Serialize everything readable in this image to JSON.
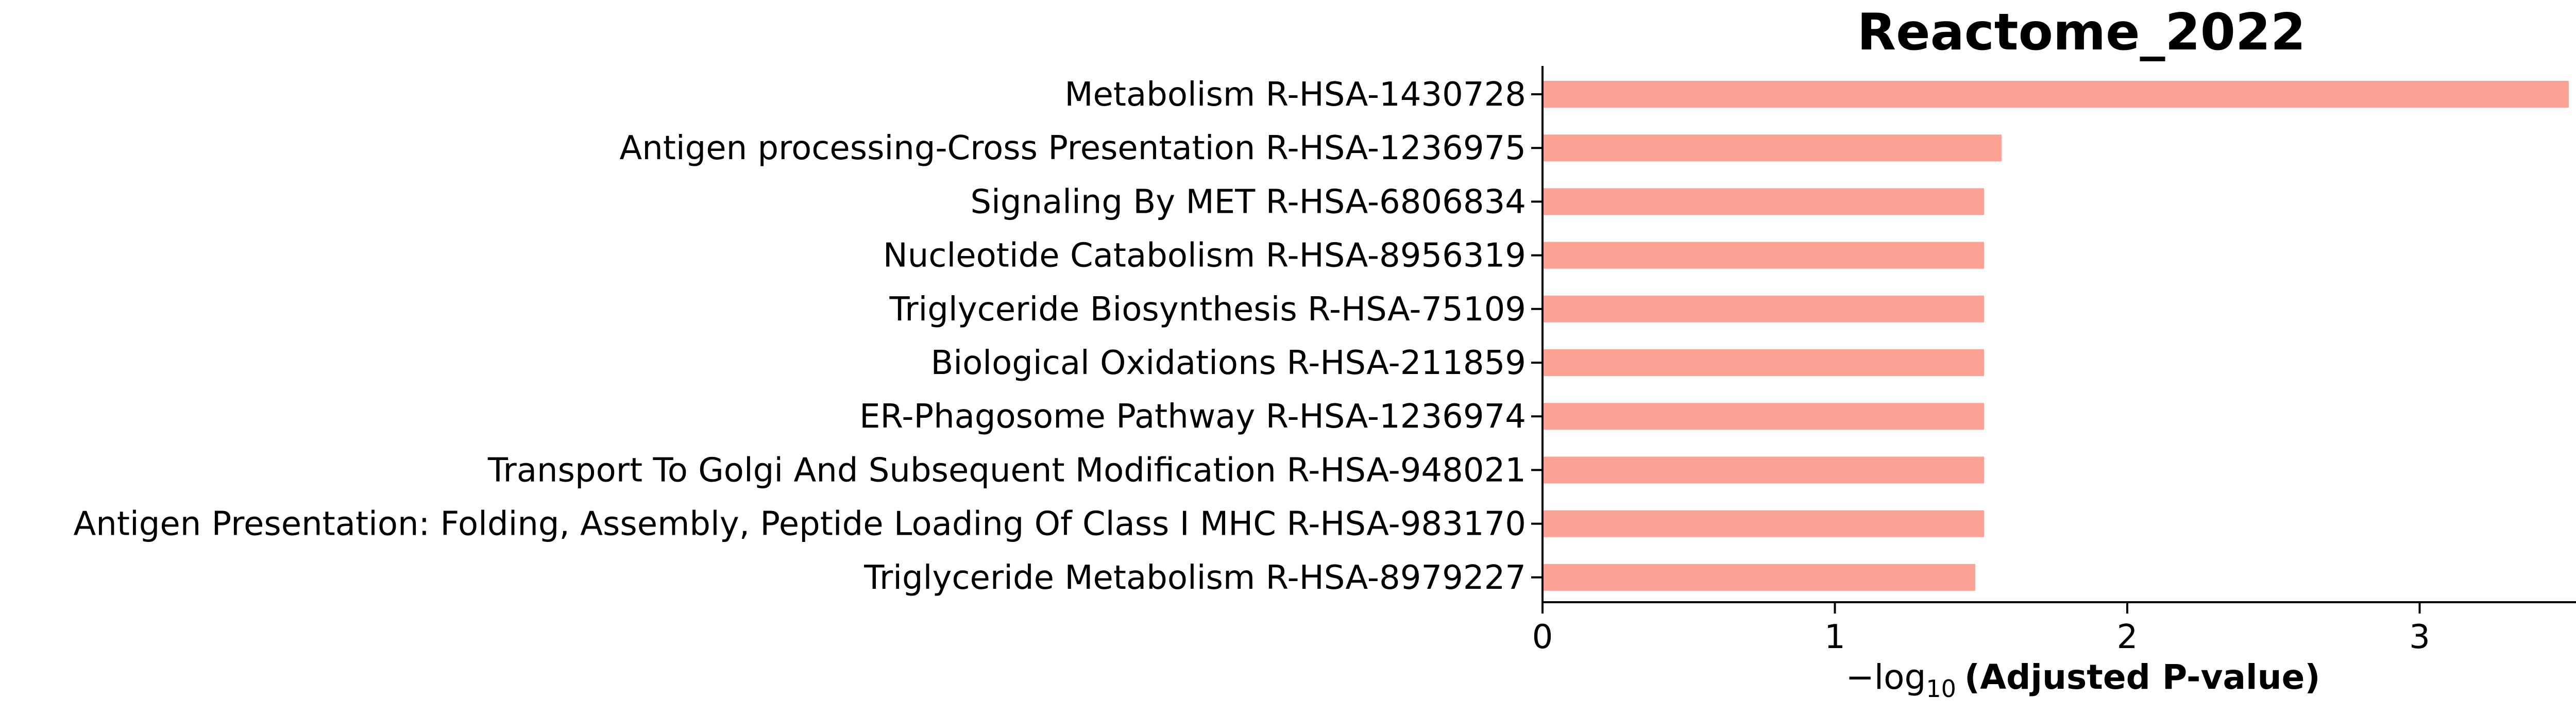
{
  "chart_data": {
    "type": "bar",
    "orientation": "horizontal",
    "title": "Reactome_2022",
    "xlabel": {
      "prefix": "−log",
      "subscript": "10",
      "text": "(Adjusted P-value)"
    },
    "ylabel": "",
    "categories": [
      "Metabolism R-HSA-1430728",
      "Antigen processing-Cross Presentation R-HSA-1236975",
      "Signaling By MET R-HSA-6806834",
      "Nucleotide Catabolism R-HSA-8956319",
      "Triglyceride Biosynthesis R-HSA-75109",
      "Biological Oxidations R-HSA-211859",
      "ER-Phagosome Pathway R-HSA-1236974",
      "Transport To Golgi And Subsequent Modification R-HSA-948021",
      "Antigen Presentation: Folding, Assembly, Peptide Loading Of Class I MHC R-HSA-983170",
      "Triglyceride Metabolism R-HSA-8979227"
    ],
    "values": [
      3.51,
      1.57,
      1.51,
      1.51,
      1.51,
      1.51,
      1.51,
      1.51,
      1.51,
      1.48
    ],
    "xticks": [
      0,
      1,
      2,
      3
    ],
    "xlim": [
      0,
      3.68
    ],
    "bar_color": "#fba195",
    "grid": false,
    "legend": "none"
  }
}
